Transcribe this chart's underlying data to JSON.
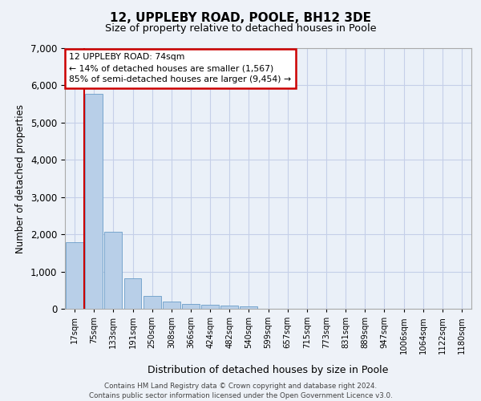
{
  "title_line1": "12, UPPLEBY ROAD, POOLE, BH12 3DE",
  "title_line2": "Size of property relative to detached houses in Poole",
  "xlabel": "Distribution of detached houses by size in Poole",
  "ylabel": "Number of detached properties",
  "bar_labels": [
    "17sqm",
    "75sqm",
    "133sqm",
    "191sqm",
    "250sqm",
    "308sqm",
    "366sqm",
    "424sqm",
    "482sqm",
    "540sqm",
    "599sqm",
    "657sqm",
    "715sqm",
    "773sqm",
    "831sqm",
    "889sqm",
    "947sqm",
    "1006sqm",
    "1064sqm",
    "1122sqm",
    "1180sqm"
  ],
  "bar_values": [
    1780,
    5770,
    2060,
    820,
    340,
    195,
    120,
    100,
    95,
    75,
    0,
    0,
    0,
    0,
    0,
    0,
    0,
    0,
    0,
    0,
    0
  ],
  "bar_color": "#b8cfe8",
  "bar_edge_color": "#6a9dc8",
  "red_line_color": "#cc0000",
  "red_line_x": 0.5,
  "annotation_text": "12 UPPLEBY ROAD: 74sqm\n← 14% of detached houses are smaller (1,567)\n85% of semi-detached houses are larger (9,454) →",
  "annotation_box_facecolor": "#ffffff",
  "annotation_box_edgecolor": "#cc0000",
  "ylim": [
    0,
    7000
  ],
  "yticks": [
    0,
    1000,
    2000,
    3000,
    4000,
    5000,
    6000,
    7000
  ],
  "fig_bg": "#eef2f8",
  "plot_bg": "#eaf0f8",
  "grid_color": "#c5cfe8",
  "footer1": "Contains HM Land Registry data © Crown copyright and database right 2024.",
  "footer2": "Contains public sector information licensed under the Open Government Licence v3.0."
}
